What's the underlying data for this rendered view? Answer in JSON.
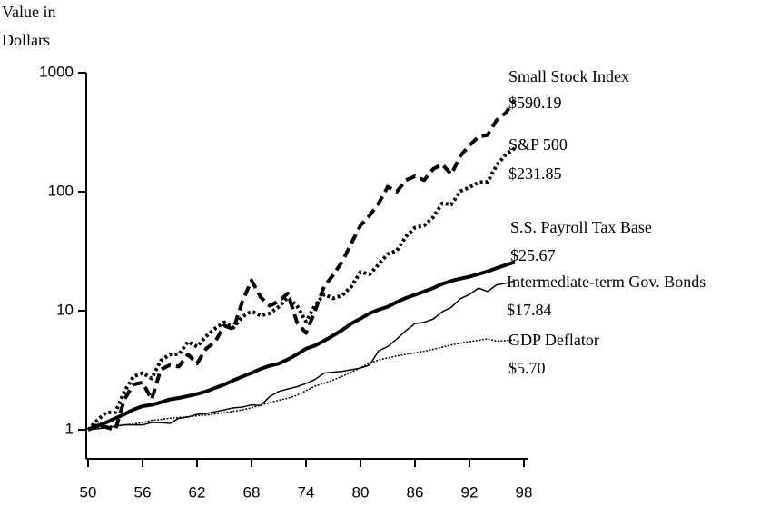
{
  "chart_data": {
    "type": "line",
    "log_y": true,
    "ylabel": [
      "Value in",
      "Dollars"
    ],
    "x": [
      50,
      51,
      52,
      53,
      54,
      55,
      56,
      57,
      58,
      59,
      60,
      61,
      62,
      63,
      64,
      65,
      66,
      67,
      68,
      69,
      70,
      71,
      72,
      73,
      74,
      75,
      76,
      77,
      78,
      79,
      80,
      81,
      82,
      83,
      84,
      85,
      86,
      87,
      88,
      89,
      90,
      91,
      92,
      93,
      94,
      95,
      96,
      97
    ],
    "xlim": [
      50,
      98
    ],
    "xticks": [
      50,
      56,
      62,
      68,
      74,
      80,
      86,
      92,
      98
    ],
    "ylim": [
      0.57,
      1000
    ],
    "yticks": [
      1,
      10,
      100,
      1000
    ],
    "series": [
      {
        "name": "Small Stock Index",
        "color": "#000000",
        "style": "dashed",
        "width": 4,
        "values": [
          1,
          1.1,
          1.05,
          1.0,
          1.8,
          2.4,
          2.5,
          1.8,
          3.2,
          3.5,
          3.4,
          4.3,
          3.6,
          4.8,
          5.5,
          7.5,
          7.0,
          12,
          18,
          13,
          11,
          12,
          14,
          8,
          6.5,
          10,
          16,
          20,
          26,
          37,
          52,
          63,
          80,
          110,
          100,
          125,
          135,
          125,
          155,
          170,
          140,
          200,
          245,
          290,
          300,
          400,
          460,
          590.19
        ],
        "value_labels": [
          null,
          null,
          null,
          null,
          null,
          null,
          null,
          null,
          null,
          null,
          null,
          null,
          null,
          null,
          null,
          null,
          null,
          null,
          null,
          null,
          null,
          null,
          null,
          null,
          null,
          null,
          null,
          null,
          null,
          null,
          null,
          null,
          null,
          null,
          null,
          null,
          null,
          null,
          null,
          null,
          null,
          null,
          null,
          null,
          null,
          null,
          null,
          "$590.19"
        ]
      },
      {
        "name": "S&P 500",
        "color": "#000000",
        "style": "dotted",
        "width": 4,
        "values": [
          1,
          1.2,
          1.4,
          1.4,
          2.1,
          2.8,
          3.0,
          2.7,
          3.8,
          4.3,
          4.3,
          5.5,
          5.0,
          6.1,
          7.1,
          8.0,
          7.2,
          8.9,
          9.9,
          9.1,
          9.5,
          10.8,
          12.9,
          11.0,
          8.1,
          11.1,
          13.7,
          12.7,
          13.5,
          16.0,
          21.2,
          20.2,
          24.5,
          30,
          32,
          42,
          50,
          52,
          61,
          80,
          78,
          101,
          109,
          120,
          121,
          167,
          205,
          231.85
        ],
        "value_labels": [
          null,
          null,
          null,
          null,
          null,
          null,
          null,
          null,
          null,
          null,
          null,
          null,
          null,
          null,
          null,
          null,
          null,
          null,
          null,
          null,
          null,
          null,
          null,
          null,
          null,
          null,
          null,
          null,
          null,
          null,
          null,
          null,
          null,
          null,
          null,
          null,
          null,
          null,
          null,
          null,
          null,
          null,
          null,
          null,
          null,
          null,
          null,
          "$231.85"
        ]
      },
      {
        "name": "S.S. Payroll Tax Base",
        "color": "#000000",
        "style": "solid",
        "width": 4,
        "values": [
          1,
          1.08,
          1.15,
          1.25,
          1.35,
          1.48,
          1.58,
          1.62,
          1.7,
          1.8,
          1.85,
          1.92,
          2.0,
          2.1,
          2.25,
          2.4,
          2.6,
          2.8,
          3.0,
          3.25,
          3.45,
          3.6,
          3.9,
          4.3,
          4.8,
          5.1,
          5.6,
          6.2,
          6.9,
          7.8,
          8.6,
          9.5,
          10.2,
          10.8,
          11.8,
          12.8,
          13.6,
          14.5,
          15.5,
          16.8,
          17.8,
          18.6,
          19.3,
          20.3,
          21.4,
          22.8,
          24.2,
          25.67
        ],
        "value_labels": [
          null,
          null,
          null,
          null,
          null,
          null,
          null,
          null,
          null,
          null,
          null,
          null,
          null,
          null,
          null,
          null,
          null,
          null,
          null,
          null,
          null,
          null,
          null,
          null,
          null,
          null,
          null,
          null,
          null,
          null,
          null,
          null,
          null,
          null,
          null,
          null,
          null,
          null,
          null,
          null,
          null,
          null,
          null,
          null,
          null,
          null,
          null,
          "$25.67"
        ]
      },
      {
        "name": "Intermediate-term Gov. Bonds",
        "color": "#000000",
        "style": "solid",
        "width": 1.5,
        "values": [
          1,
          1.02,
          1.04,
          1.07,
          1.1,
          1.1,
          1.1,
          1.15,
          1.15,
          1.13,
          1.25,
          1.28,
          1.35,
          1.37,
          1.42,
          1.47,
          1.53,
          1.55,
          1.62,
          1.6,
          1.9,
          2.1,
          2.2,
          2.3,
          2.45,
          2.65,
          3.0,
          3.05,
          3.1,
          3.2,
          3.3,
          3.5,
          4.6,
          5.0,
          5.8,
          6.8,
          7.8,
          8.0,
          8.5,
          9.8,
          10.7,
          12.6,
          13.7,
          15.5,
          14.5,
          16.5,
          17.0,
          17.84
        ],
        "value_labels": [
          null,
          null,
          null,
          null,
          null,
          null,
          null,
          null,
          null,
          null,
          null,
          null,
          null,
          null,
          null,
          null,
          null,
          null,
          null,
          null,
          null,
          null,
          null,
          null,
          null,
          null,
          null,
          null,
          null,
          null,
          null,
          null,
          null,
          null,
          null,
          null,
          null,
          null,
          null,
          null,
          null,
          null,
          null,
          null,
          null,
          null,
          null,
          "$17.84"
        ]
      },
      {
        "name": "GDP Deflator",
        "color": "#000000",
        "style": "dotted",
        "width": 1.5,
        "values": [
          1,
          1.05,
          1.07,
          1.08,
          1.1,
          1.12,
          1.15,
          1.2,
          1.22,
          1.25,
          1.27,
          1.29,
          1.31,
          1.33,
          1.36,
          1.39,
          1.43,
          1.47,
          1.53,
          1.61,
          1.69,
          1.77,
          1.84,
          1.95,
          2.13,
          2.33,
          2.46,
          2.62,
          2.82,
          3.05,
          3.33,
          3.63,
          3.86,
          4.02,
          4.17,
          4.31,
          4.43,
          4.56,
          4.74,
          4.94,
          5.16,
          5.35,
          5.5,
          5.65,
          5.8,
          5.55,
          5.6,
          5.7
        ],
        "value_labels": [
          null,
          null,
          null,
          null,
          null,
          null,
          null,
          null,
          null,
          null,
          null,
          null,
          null,
          null,
          null,
          null,
          null,
          null,
          null,
          null,
          null,
          null,
          null,
          null,
          null,
          null,
          null,
          null,
          null,
          null,
          null,
          null,
          null,
          null,
          null,
          null,
          null,
          null,
          null,
          null,
          null,
          null,
          null,
          null,
          null,
          null,
          null,
          "$5.70"
        ]
      }
    ]
  }
}
